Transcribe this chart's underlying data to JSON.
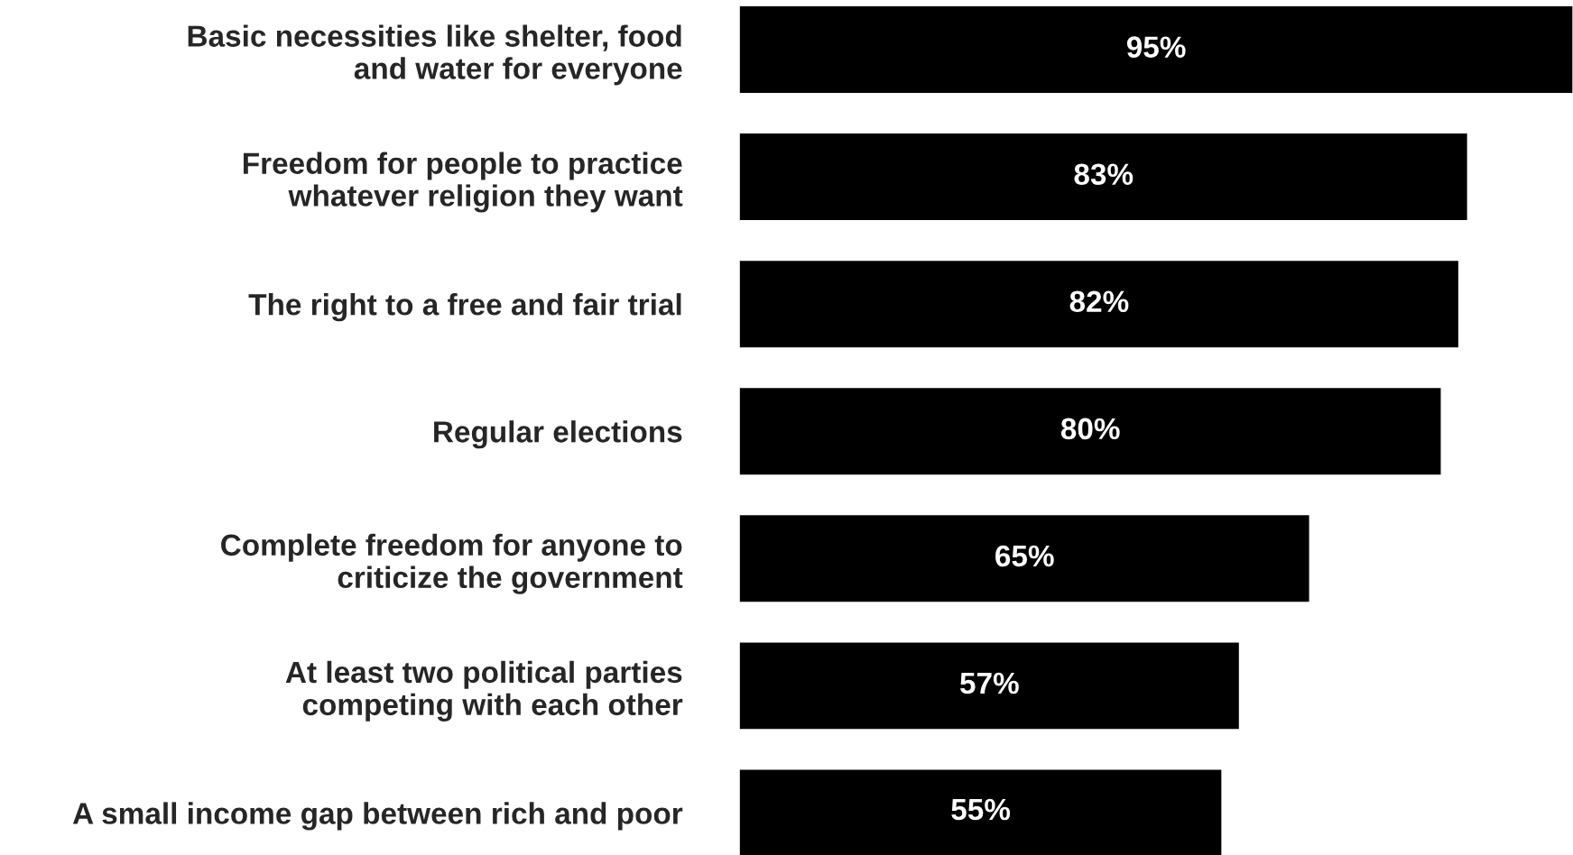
{
  "chart_data": {
    "type": "bar",
    "orientation": "horizontal",
    "categories": [
      "Basic necessities like shelter, food\nand water for everyone",
      "Freedom for people to practice\nwhatever religion they want",
      "The right to a free and fair trial",
      "Regular elections",
      "Complete freedom for anyone to\ncriticize the government",
      "At least two political parties\ncompeting with each other",
      "A small income gap between rich and poor"
    ],
    "values": [
      95,
      83,
      82,
      80,
      65,
      57,
      55
    ],
    "value_labels": [
      "95%",
      "83%",
      "82%",
      "80%",
      "65%",
      "57%",
      "55%"
    ],
    "color": "#000000",
    "xlim": [
      0,
      95
    ],
    "tick_labels": "y",
    "grid": false,
    "legend": false
  }
}
